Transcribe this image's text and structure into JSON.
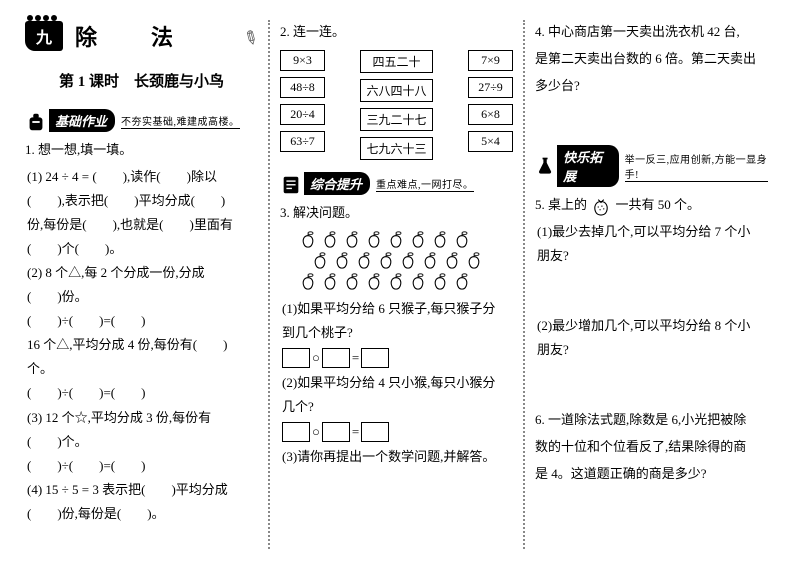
{
  "chapter": {
    "num": "九",
    "title": "除　法"
  },
  "lesson": {
    "title": "第 1 课时　长颈鹿与小鸟"
  },
  "banners": {
    "basic": {
      "label": "基础作业",
      "tag": "不夯实基础,难建成高楼。"
    },
    "comp": {
      "label": "综合提升",
      "tag": "重点难点,一网打尽。"
    },
    "ext": {
      "label": "快乐拓展",
      "tag": "举一反三,应用创新,方能一显身手!"
    }
  },
  "col1": {
    "q1": "1. 想一想,填一填。",
    "q1_1a": "(1) 24 ÷ 4 = (　　),读作(　　)除以",
    "q1_1b": "(　　),表示把(　　)平均分成(　　)",
    "q1_1c": "份,每份是(　　),也就是(　　)里面有",
    "q1_1d": "(　　)个(　　)。",
    "q1_2a": "(2) 8 个△,每 2 个分成一份,分成",
    "q1_2b": "(　　)份。",
    "q1_2c": "(　　)÷(　　)=(　　)",
    "q1_2d": "16 个△,平均分成 4 份,每份有(　　)",
    "q1_2e": "个。",
    "q1_2f": "(　　)÷(　　)=(　　)",
    "q1_3a": "(3) 12 个☆,平均分成 3 份,每份有",
    "q1_3b": "(　　)个。",
    "q1_3c": "(　　)÷(　　)=(　　)",
    "q1_4a": "(4) 15 ÷ 5 = 3 表示把(　　)平均分成",
    "q1_4b": "(　　)份,每份是(　　)。"
  },
  "col2": {
    "q2": "2. 连一连。",
    "left": [
      "9×3",
      "48÷8",
      "20÷4",
      "63÷7"
    ],
    "mid": [
      "四五二十",
      "六八四十八",
      "三九二十七",
      "七九六十三"
    ],
    "right": [
      "7×9",
      "27÷9",
      "6×8",
      "5×4"
    ],
    "q3": "3. 解决问题。",
    "peach_rows": [
      8,
      8,
      8
    ],
    "q3_1a": "(1)如果平均分给 6 只猴子,每只猴子分",
    "q3_1b": "到几个桃子?",
    "q3_2a": "(2)如果平均分给 4 只小猴,每只小猴分",
    "q3_2b": "几个?",
    "q3_3": "(3)请你再提出一个数学问题,并解答。",
    "op_circle": "○",
    "op_eq": "="
  },
  "col3": {
    "q4a": "4. 中心商店第一天卖出洗衣机 42 台,",
    "q4b": "是第二天卖出台数的 6 倍。第二天卖出",
    "q4c": "多少台?",
    "q5a": "5. 桌上的",
    "q5b": "一共有 50 个。",
    "q5_1a": "(1)最少去掉几个,可以平均分给 7 个小",
    "q5_1b": "朋友?",
    "q5_2a": "(2)最少增加几个,可以平均分给 8 个小",
    "q5_2b": "朋友?",
    "q6a": "6. 一道除法式题,除数是 6,小光把被除",
    "q6b": "数的十位和个位看反了,结果除得的商",
    "q6c": "是 4。这道题正确的商是多少?"
  }
}
